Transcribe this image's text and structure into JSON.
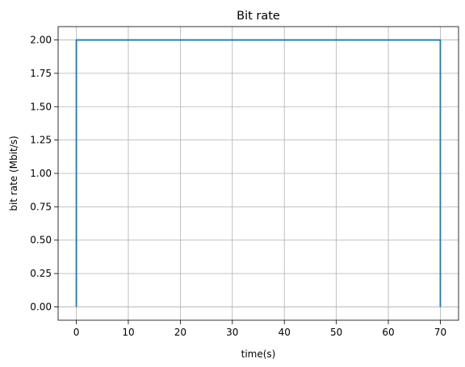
{
  "chart_data": {
    "type": "line",
    "title": "Bit rate",
    "xlabel": "time(s)",
    "ylabel": "bit rate (Mbit/s)",
    "xlim": [
      -3.5,
      73.5
    ],
    "ylim": [
      -0.1,
      2.1
    ],
    "xticks": [
      0,
      10,
      20,
      30,
      40,
      50,
      60,
      70
    ],
    "xtick_labels": [
      "0",
      "10",
      "20",
      "30",
      "40",
      "50",
      "60",
      "70"
    ],
    "yticks": [
      0,
      0.25,
      0.5,
      0.75,
      1.0,
      1.25,
      1.5,
      1.75,
      2.0
    ],
    "ytick_labels": [
      "0.00",
      "0.25",
      "0.50",
      "0.75",
      "1.00",
      "1.25",
      "1.50",
      "1.75",
      "2.00"
    ],
    "grid": true,
    "series": [
      {
        "color": "#1f77b4",
        "x": [
          0,
          0,
          70,
          70
        ],
        "y": [
          0,
          2.0,
          2.0,
          0
        ]
      }
    ]
  }
}
